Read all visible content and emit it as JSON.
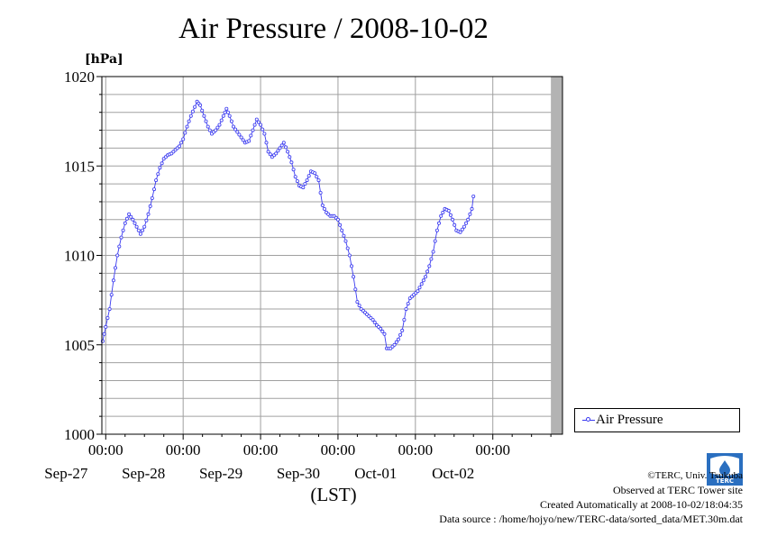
{
  "chart_data": {
    "type": "line",
    "title": "Air Pressure / 2008-10-02",
    "ylabel": "[hPa]",
    "xlabel": "(LST)",
    "ylim": [
      1000,
      1020
    ],
    "yticks": [
      1000,
      1005,
      1010,
      1015,
      1020
    ],
    "ytick_labels": [
      "1000",
      "1005",
      "1010",
      "1015",
      "1020"
    ],
    "x_unit": "days since 2008-09-26 00:00",
    "xlim": [
      0.95,
      6.9
    ],
    "xticks": [
      1,
      2,
      3,
      4,
      5,
      6
    ],
    "xtick_time_labels": [
      "00:00",
      "00:00",
      "00:00",
      "00:00",
      "00:00",
      "00:00"
    ],
    "xtick_date_labels": [
      "Sep-27",
      "Sep-28",
      "Sep-29",
      "Sep-30",
      "Oct-01",
      "Oct-02"
    ],
    "grid": true,
    "legend": "right",
    "missing_data_from": 6.75,
    "series": [
      {
        "name": "Air Pressure",
        "color": "#3a3af0",
        "marker": "open-circle",
        "points": [
          [
            0.96,
            1005.2
          ],
          [
            1.0,
            1006.0
          ],
          [
            1.05,
            1007.0
          ],
          [
            1.1,
            1008.6
          ],
          [
            1.15,
            1010.0
          ],
          [
            1.2,
            1011.0
          ],
          [
            1.25,
            1011.8
          ],
          [
            1.3,
            1012.3
          ],
          [
            1.35,
            1012.0
          ],
          [
            1.4,
            1011.6
          ],
          [
            1.45,
            1011.2
          ],
          [
            1.5,
            1011.6
          ],
          [
            1.55,
            1012.3
          ],
          [
            1.6,
            1013.2
          ],
          [
            1.65,
            1014.2
          ],
          [
            1.7,
            1014.9
          ],
          [
            1.75,
            1015.4
          ],
          [
            1.8,
            1015.6
          ],
          [
            1.85,
            1015.7
          ],
          [
            1.9,
            1015.9
          ],
          [
            1.95,
            1016.1
          ],
          [
            2.0,
            1016.5
          ],
          [
            2.05,
            1017.2
          ],
          [
            2.1,
            1017.8
          ],
          [
            2.15,
            1018.3
          ],
          [
            2.18,
            1018.6
          ],
          [
            2.22,
            1018.4
          ],
          [
            2.27,
            1017.8
          ],
          [
            2.32,
            1017.2
          ],
          [
            2.37,
            1016.8
          ],
          [
            2.42,
            1017.0
          ],
          [
            2.47,
            1017.3
          ],
          [
            2.52,
            1017.8
          ],
          [
            2.56,
            1018.2
          ],
          [
            2.6,
            1017.8
          ],
          [
            2.65,
            1017.2
          ],
          [
            2.7,
            1016.9
          ],
          [
            2.75,
            1016.6
          ],
          [
            2.8,
            1016.3
          ],
          [
            2.85,
            1016.4
          ],
          [
            2.9,
            1017.0
          ],
          [
            2.95,
            1017.6
          ],
          [
            3.0,
            1017.3
          ],
          [
            3.05,
            1016.8
          ],
          [
            3.1,
            1015.8
          ],
          [
            3.15,
            1015.5
          ],
          [
            3.2,
            1015.7
          ],
          [
            3.25,
            1016.0
          ],
          [
            3.3,
            1016.3
          ],
          [
            3.35,
            1015.8
          ],
          [
            3.4,
            1015.2
          ],
          [
            3.45,
            1014.4
          ],
          [
            3.5,
            1013.9
          ],
          [
            3.55,
            1013.8
          ],
          [
            3.6,
            1014.2
          ],
          [
            3.65,
            1014.7
          ],
          [
            3.7,
            1014.6
          ],
          [
            3.75,
            1014.2
          ],
          [
            3.8,
            1012.8
          ],
          [
            3.85,
            1012.4
          ],
          [
            3.9,
            1012.2
          ],
          [
            3.95,
            1012.2
          ],
          [
            4.0,
            1012.0
          ],
          [
            4.05,
            1011.4
          ],
          [
            4.1,
            1010.8
          ],
          [
            4.15,
            1010.0
          ],
          [
            4.2,
            1008.8
          ],
          [
            4.25,
            1007.4
          ],
          [
            4.3,
            1007.0
          ],
          [
            4.35,
            1006.8
          ],
          [
            4.4,
            1006.6
          ],
          [
            4.45,
            1006.4
          ],
          [
            4.5,
            1006.1
          ],
          [
            4.55,
            1005.9
          ],
          [
            4.6,
            1005.6
          ],
          [
            4.63,
            1004.8
          ],
          [
            4.68,
            1004.8
          ],
          [
            4.73,
            1005.0
          ],
          [
            4.78,
            1005.3
          ],
          [
            4.83,
            1005.8
          ],
          [
            4.88,
            1007.0
          ],
          [
            4.93,
            1007.6
          ],
          [
            4.98,
            1007.8
          ],
          [
            5.03,
            1008.0
          ],
          [
            5.08,
            1008.4
          ],
          [
            5.13,
            1008.8
          ],
          [
            5.18,
            1009.4
          ],
          [
            5.23,
            1010.2
          ],
          [
            5.28,
            1011.4
          ],
          [
            5.33,
            1012.2
          ],
          [
            5.38,
            1012.6
          ],
          [
            5.43,
            1012.5
          ],
          [
            5.48,
            1012.0
          ],
          [
            5.53,
            1011.4
          ],
          [
            5.58,
            1011.3
          ],
          [
            5.63,
            1011.6
          ],
          [
            5.68,
            1012.0
          ],
          [
            5.73,
            1012.6
          ],
          [
            5.75,
            1013.3
          ]
        ]
      }
    ]
  },
  "credits": {
    "copyright": "©TERC, Univ. Tsukuba",
    "observed": "Observed at TERC Tower site",
    "created": "Created Automatically at 2008-10-02/18:04:35",
    "source": "Data source : /home/hojyo/new/TERC-data/sorted_data/MET.30m.dat"
  },
  "logo": {
    "text": "TERC",
    "color": "#2a6fc0"
  }
}
